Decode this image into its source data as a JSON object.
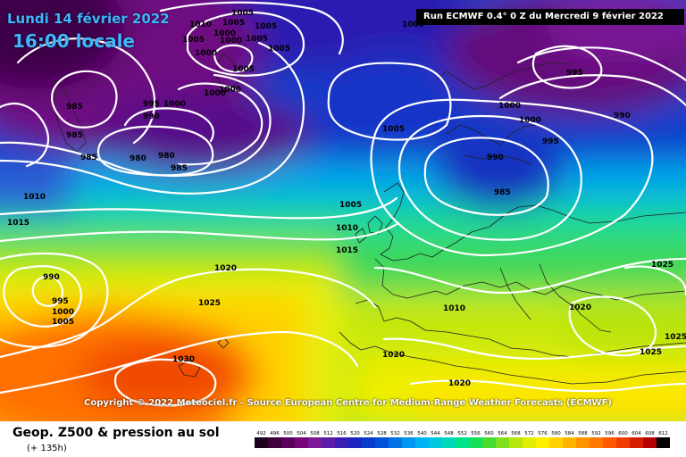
{
  "header": {
    "date_label": "Lundi 14 février 2022",
    "time_label": "16:00 locale",
    "run_label": "Run ECMWF 0.4° 0 Z du Mercredi 9 février 2022"
  },
  "footer": {
    "copyright": "Copyright © 2022 Meteociel.fr - Source European Centre for Medium-Range Weather Forecasts (ECMWF)",
    "title": "Geop. Z500 & pression au sol",
    "subtitle": "(+ 135h)"
  },
  "legend": {
    "values": [
      "492",
      "496",
      "500",
      "504",
      "508",
      "512",
      "516",
      "520",
      "524",
      "528",
      "532",
      "536",
      "540",
      "544",
      "548",
      "552",
      "556",
      "560",
      "564",
      "568",
      "572",
      "576",
      "580",
      "584",
      "588",
      "592",
      "596",
      "600",
      "604",
      "608",
      "612"
    ],
    "colors": [
      "#1b001b",
      "#3d003d",
      "#5a005a",
      "#780478",
      "#7a1896",
      "#5a1ea8",
      "#3a1eb4",
      "#1e24be",
      "#0a3ccc",
      "#0050d8",
      "#0072e4",
      "#0096f0",
      "#00b4f4",
      "#00c8e0",
      "#00d8b8",
      "#00e28c",
      "#14e05a",
      "#48dc32",
      "#80e01e",
      "#b8e80a",
      "#e0ee04",
      "#fff000",
      "#ffd200",
      "#ffb400",
      "#ff9600",
      "#ff7800",
      "#ff5a00",
      "#f03c00",
      "#d81e00",
      "#b40000",
      "#000000"
    ]
  },
  "isobars": {
    "labels": [
      {
        "text": "1005"
      },
      {
        "text": "1010"
      },
      {
        "text": "1005"
      },
      {
        "text": "1000"
      },
      {
        "text": "1005"
      },
      {
        "text": "1005"
      },
      {
        "text": "1000"
      },
      {
        "text": "1000"
      },
      {
        "text": "1005"
      },
      {
        "text": "1005"
      },
      {
        "text": "1005"
      },
      {
        "text": "1000"
      },
      {
        "text": "1000"
      },
      {
        "text": "985"
      },
      {
        "text": "995"
      },
      {
        "text": "1000"
      },
      {
        "text": "990"
      },
      {
        "text": "985"
      },
      {
        "text": "985"
      },
      {
        "text": "980"
      },
      {
        "text": "980"
      },
      {
        "text": "985"
      },
      {
        "text": "1005"
      },
      {
        "text": "995"
      },
      {
        "text": "1000"
      },
      {
        "text": "1000"
      },
      {
        "text": "990"
      },
      {
        "text": "995"
      },
      {
        "text": "990"
      },
      {
        "text": "985"
      },
      {
        "text": "1010"
      },
      {
        "text": "1015"
      },
      {
        "text": "1005"
      },
      {
        "text": "1010"
      },
      {
        "text": "1015"
      },
      {
        "text": "1020"
      },
      {
        "text": "990"
      },
      {
        "text": "995"
      },
      {
        "text": "1000"
      },
      {
        "text": "1005"
      },
      {
        "text": "1025"
      },
      {
        "text": "1010"
      },
      {
        "text": "1020"
      },
      {
        "text": "1025"
      },
      {
        "text": "1025"
      },
      {
        "text": "1025"
      },
      {
        "text": "1020"
      },
      {
        "text": "1030"
      },
      {
        "text": "1020"
      },
      {
        "text": "1005"
      }
    ]
  }
}
